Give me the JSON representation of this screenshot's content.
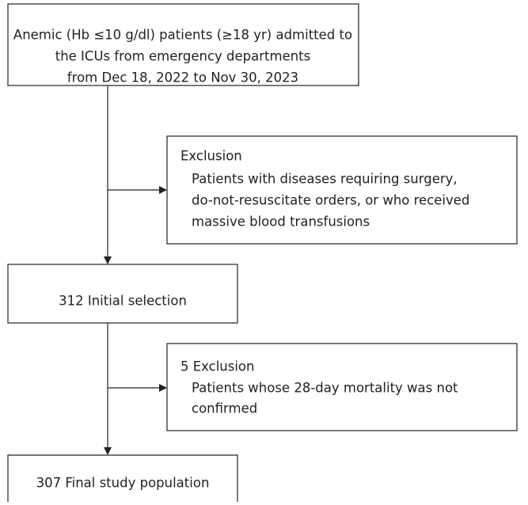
{
  "nodes": [
    {
      "lines": [
        "Anemic (Hb ≤10 g/dl) patients (≥18 yr) admitted to",
        "the ICUs from emergency departments",
        "from Dec 18, 2022 to Nov 30, 2023"
      ]
    },
    {
      "lines": [
        "Exclusion",
        "Patients with diseases requiring surgery,",
        "do-not-resuscitate orders, or who received",
        "massive blood transfusions"
      ]
    },
    {
      "lines": [
        "312 Initial selection"
      ]
    },
    {
      "lines": [
        "5 Exclusion",
        "Patients whose 28-day mortality was not",
        "confirmed"
      ]
    },
    {
      "lines": [
        "307 Final study population"
      ]
    }
  ]
}
